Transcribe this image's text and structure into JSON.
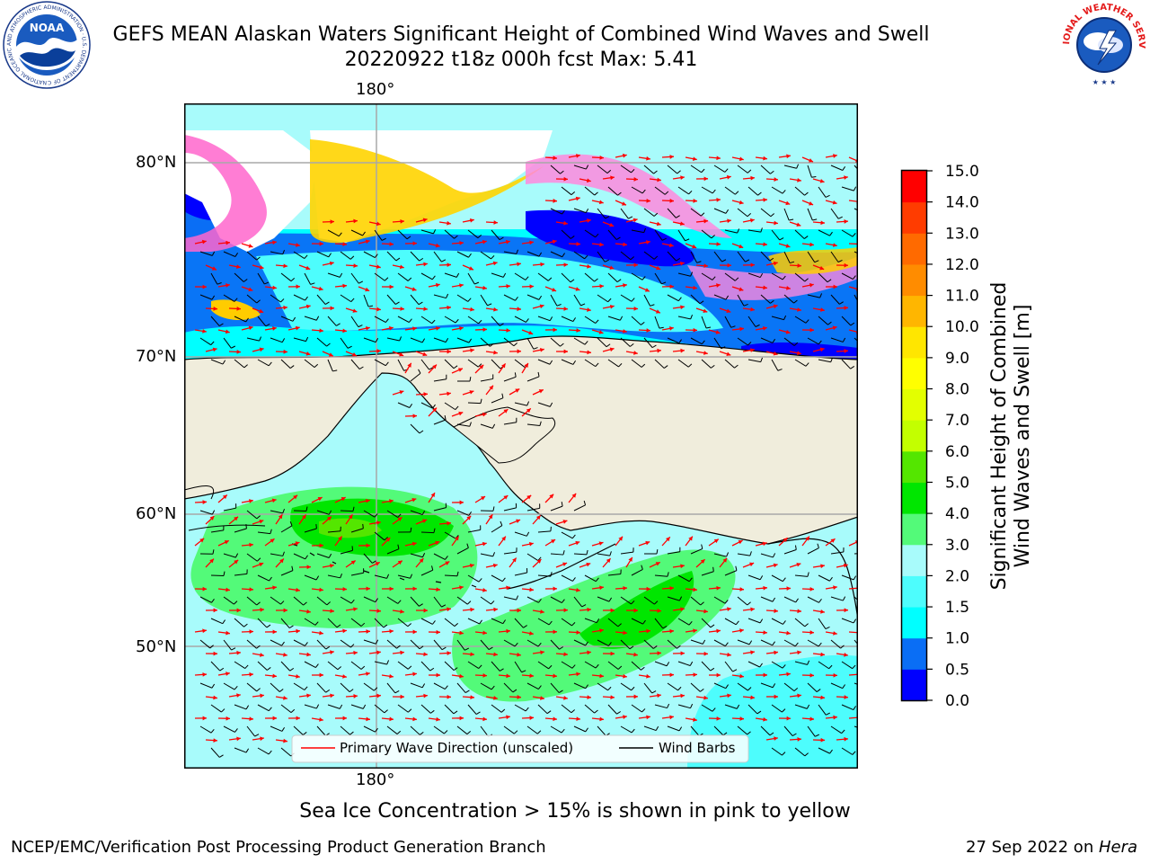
{
  "header": {
    "title_line1": "GEFS MEAN Alaskan Waters Significant Height of Combined Wind Waves and Swell",
    "title_line2": "20220922 t18z 000h fcst   Max: 5.41",
    "left_logo": "noaa-logo",
    "left_logo_text": "NOAA",
    "left_logo_ring_text": "NATIONAL OCEANIC AND ATMOSPHERIC ADMINISTRATION · U.S. DEPARTMENT OF COMMERCE",
    "right_logo": "nws-logo",
    "right_logo_ring_text": "NATIONAL WEATHER SERVICE"
  },
  "map": {
    "lon_label_top": "180°",
    "lon_label_bottom": "180°",
    "lat_labels": [
      "80°N",
      "70°N",
      "60°N",
      "50°N"
    ],
    "colors": {
      "land": "#f0eddc",
      "frame": "#000000",
      "grid": "#a8a8a8",
      "wave_arrow": "#ff0000",
      "wind_barb": "#000000"
    },
    "legend": {
      "wave": "Primary Wave Direction (unscaled)",
      "wind": "Wind Barbs"
    }
  },
  "colorbar": {
    "title_line1": "Significant Height of Combined",
    "title_line2": "Wind Waves and Swell [m]",
    "ticks": [
      "0.0",
      "0.5",
      "1.0",
      "1.5",
      "2.0",
      "3.0",
      "4.0",
      "5.0",
      "6.0",
      "7.0",
      "8.0",
      "9.0",
      "10.0",
      "11.0",
      "12.0",
      "13.0",
      "14.0",
      "15.0"
    ],
    "colors": [
      "#0000ff",
      "#0a6ef5",
      "#00ffff",
      "#4dfdfd",
      "#a8fbfb",
      "#53fa79",
      "#00e600",
      "#54e600",
      "#c3ff00",
      "#e3ff00",
      "#ffff00",
      "#ffe600",
      "#ffb600",
      "#ff8c00",
      "#ff6a00",
      "#ff3c00",
      "#ff0000"
    ]
  },
  "footer": {
    "sea_ice_note": "Sea Ice Concentration > 15% is shown in pink to yellow",
    "credit": "NCEP/EMC/Verification Post Processing Product Generation Branch",
    "date": "27 Sep 2022 on ",
    "host": "Hera"
  }
}
